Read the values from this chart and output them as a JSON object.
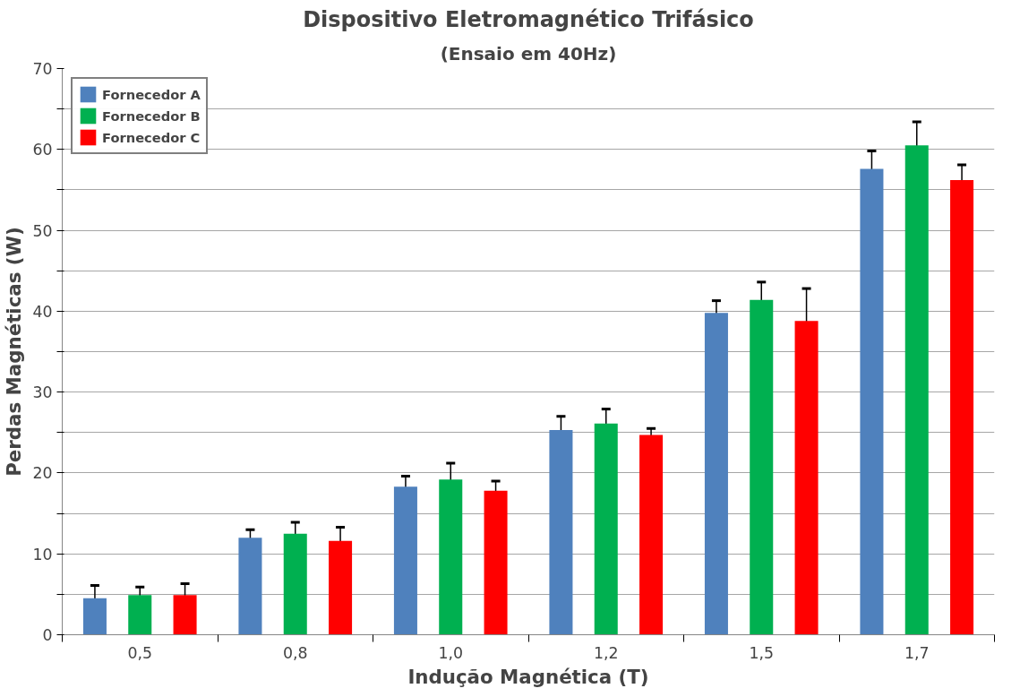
{
  "chart_data": {
    "type": "bar",
    "title": "Dispositivo Eletromagnético Trifásico",
    "subtitle": "(Ensaio em 40Hz)",
    "xlabel": "Indução Magnética (T)",
    "ylabel": "Perdas Magnéticas (W)",
    "categories": [
      "0,5",
      "0,8",
      "1,0",
      "1,2",
      "1,5",
      "1,7"
    ],
    "series": [
      {
        "name": "Fornecedor A",
        "color": "#4f81bd",
        "values": [
          4.5,
          12.0,
          18.3,
          25.3,
          39.8,
          57.6
        ],
        "errors": [
          1.6,
          1.0,
          1.3,
          1.7,
          1.5,
          2.2
        ]
      },
      {
        "name": "Fornecedor B",
        "color": "#00b050",
        "values": [
          4.9,
          12.5,
          19.2,
          26.1,
          41.4,
          60.5
        ],
        "errors": [
          1.0,
          1.4,
          2.0,
          1.8,
          2.2,
          2.9
        ]
      },
      {
        "name": "Fornecedor C",
        "color": "#ff0000",
        "values": [
          4.9,
          11.6,
          17.8,
          24.7,
          38.8,
          56.2
        ],
        "errors": [
          1.4,
          1.7,
          1.2,
          0.8,
          4.0,
          1.9
        ]
      }
    ],
    "ylim": [
      0,
      70
    ],
    "yticks": [
      0,
      {
        "value": 5,
        "label": null
      },
      10,
      {
        "value": 15,
        "label": null
      },
      20,
      {
        "value": 25,
        "label": null
      },
      30,
      {
        "value": 35,
        "label": null
      },
      40,
      {
        "value": 45,
        "label": null
      },
      50,
      {
        "value": 55,
        "label": null
      },
      60,
      {
        "value": 65,
        "label": null
      },
      70
    ],
    "grid": "y",
    "legend": "top left"
  }
}
